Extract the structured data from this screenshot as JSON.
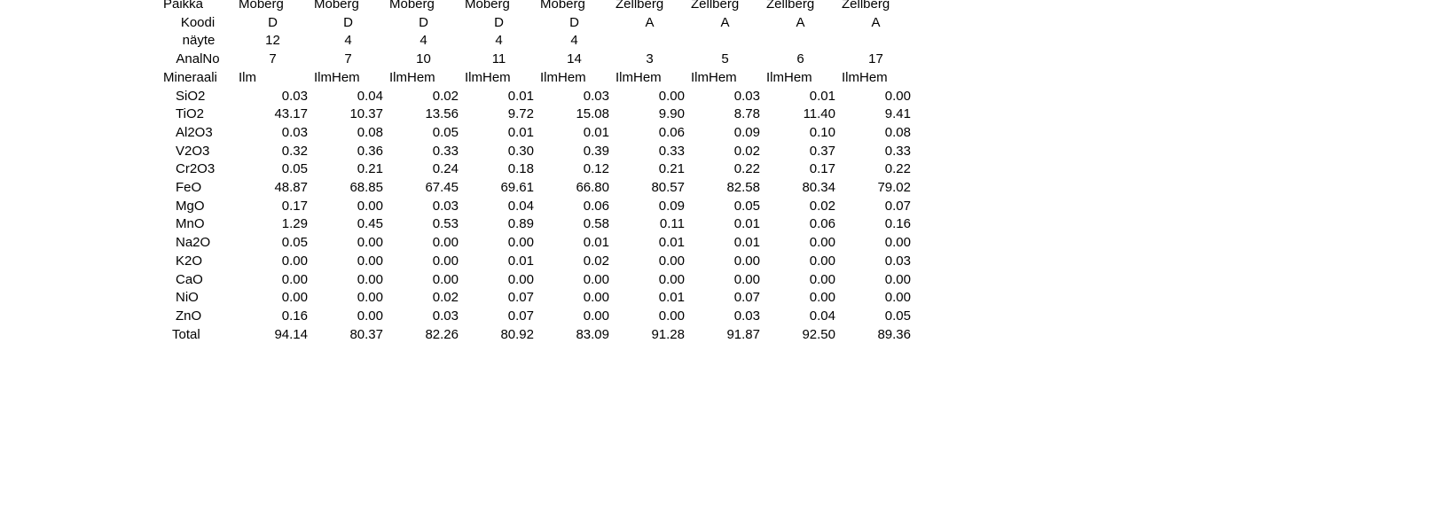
{
  "header_rows": [
    {
      "key": "paikka",
      "label": "Paikka",
      "values": [
        "Moberg",
        "Moberg",
        "Moberg",
        "Moberg",
        "Moberg",
        "Zellberg",
        "Zellberg",
        "Zellberg",
        "Zellberg"
      ]
    },
    {
      "key": "koodi",
      "label": "Koodi",
      "values": [
        "D",
        "D",
        "D",
        "D",
        "D",
        "A",
        "A",
        "A",
        "A"
      ]
    },
    {
      "key": "nayte",
      "label": "näyte",
      "values": [
        "12",
        "4",
        "4",
        "4",
        "4",
        "",
        "",
        "",
        ""
      ]
    },
    {
      "key": "analno",
      "label": "AnalNo",
      "values": [
        "7",
        "7",
        "10",
        "11",
        "14",
        "3",
        "5",
        "6",
        "17"
      ]
    },
    {
      "key": "mineraali",
      "label": "Mineraali",
      "values": [
        "Ilm",
        "IlmHem",
        "IlmHem",
        "IlmHem",
        "IlmHem",
        "IlmHem",
        "IlmHem",
        "IlmHem",
        "IlmHem"
      ]
    }
  ],
  "oxide_rows": [
    {
      "label": "SiO2",
      "values": [
        "0.03",
        "0.04",
        "0.02",
        "0.01",
        "0.03",
        "0.00",
        "0.03",
        "0.01",
        "0.00"
      ]
    },
    {
      "label": "TiO2",
      "values": [
        "43.17",
        "10.37",
        "13.56",
        "9.72",
        "15.08",
        "9.90",
        "8.78",
        "11.40",
        "9.41"
      ]
    },
    {
      "label": "Al2O3",
      "values": [
        "0.03",
        "0.08",
        "0.05",
        "0.01",
        "0.01",
        "0.06",
        "0.09",
        "0.10",
        "0.08"
      ]
    },
    {
      "label": "V2O3",
      "values": [
        "0.32",
        "0.36",
        "0.33",
        "0.30",
        "0.39",
        "0.33",
        "0.02",
        "0.37",
        "0.33"
      ]
    },
    {
      "label": "Cr2O3",
      "values": [
        "0.05",
        "0.21",
        "0.24",
        "0.18",
        "0.12",
        "0.21",
        "0.22",
        "0.17",
        "0.22"
      ]
    },
    {
      "label": "FeO",
      "values": [
        "48.87",
        "68.85",
        "67.45",
        "69.61",
        "66.80",
        "80.57",
        "82.58",
        "80.34",
        "79.02"
      ]
    },
    {
      "label": "MgO",
      "values": [
        "0.17",
        "0.00",
        "0.03",
        "0.04",
        "0.06",
        "0.09",
        "0.05",
        "0.02",
        "0.07"
      ]
    },
    {
      "label": "MnO",
      "values": [
        "1.29",
        "0.45",
        "0.53",
        "0.89",
        "0.58",
        "0.11",
        "0.01",
        "0.06",
        "0.16"
      ]
    },
    {
      "label": "Na2O",
      "values": [
        "0.05",
        "0.00",
        "0.00",
        "0.00",
        "0.01",
        "0.01",
        "0.01",
        "0.00",
        "0.00"
      ]
    },
    {
      "label": "K2O",
      "values": [
        "0.00",
        "0.00",
        "0.00",
        "0.01",
        "0.02",
        "0.00",
        "0.00",
        "0.00",
        "0.03"
      ]
    },
    {
      "label": "CaO",
      "values": [
        "0.00",
        "0.00",
        "0.00",
        "0.00",
        "0.00",
        "0.00",
        "0.00",
        "0.00",
        "0.00"
      ]
    },
    {
      "label": "NiO",
      "values": [
        "0.00",
        "0.00",
        "0.02",
        "0.07",
        "0.00",
        "0.01",
        "0.07",
        "0.00",
        "0.00"
      ]
    },
    {
      "label": "ZnO",
      "values": [
        "0.16",
        "0.00",
        "0.03",
        "0.07",
        "0.00",
        "0.00",
        "0.03",
        "0.04",
        "0.05"
      ]
    },
    {
      "label": "Total",
      "values": [
        "94.14",
        "80.37",
        "82.26",
        "80.92",
        "83.09",
        "91.28",
        "91.87",
        "92.50",
        "89.36"
      ]
    }
  ]
}
